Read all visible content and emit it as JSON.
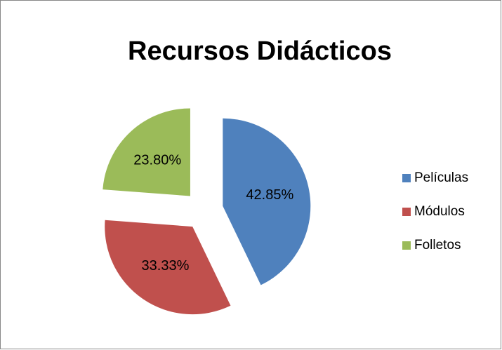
{
  "chart_data": {
    "type": "pie",
    "title": "Recursos Didácticos",
    "categories": [
      "Películas",
      "Módulos",
      "Folletos"
    ],
    "values": [
      42.85,
      33.33,
      23.8
    ],
    "value_labels": [
      "42.85%",
      "33.33%",
      "23.80%"
    ],
    "colors": [
      "#4f81bd",
      "#c0504d",
      "#9bbb59"
    ],
    "legend": "right"
  }
}
